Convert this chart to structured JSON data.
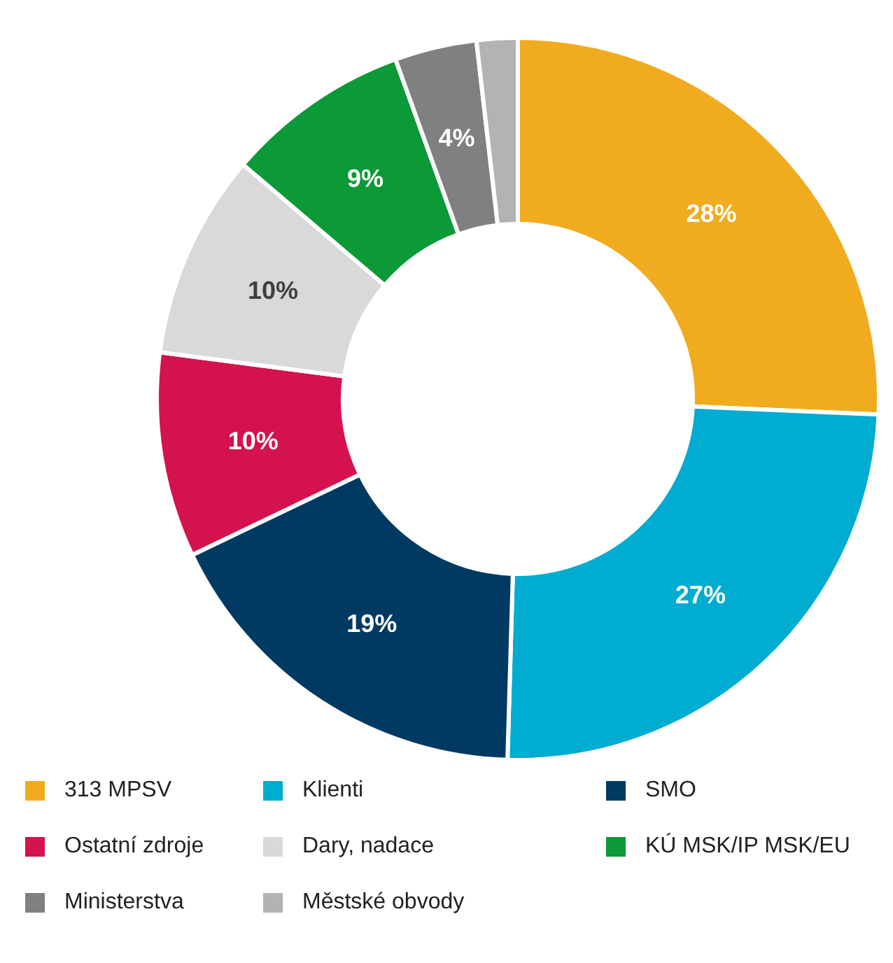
{
  "chart_data": {
    "type": "donut",
    "categories": [
      "313 MPSV",
      "Klienti",
      "SMO",
      "Ostatní zdroje",
      "Dary, nadace",
      "KÚ MSK/IP MSK/EU",
      "Ministerstva",
      "Městské obvody"
    ],
    "values": [
      28,
      27,
      19,
      10,
      10,
      9,
      4,
      2
    ],
    "value_labels": [
      "28%",
      "27%",
      "19%",
      "10%",
      "10%",
      "9%",
      "4%",
      null
    ],
    "colors": [
      "#f0ac1e",
      "#00acd0",
      "#003a63",
      "#d4124d",
      "#d9d9d9",
      "#0b9a37",
      "#808080",
      "#b3b3b3"
    ],
    "legend": "bottom"
  }
}
